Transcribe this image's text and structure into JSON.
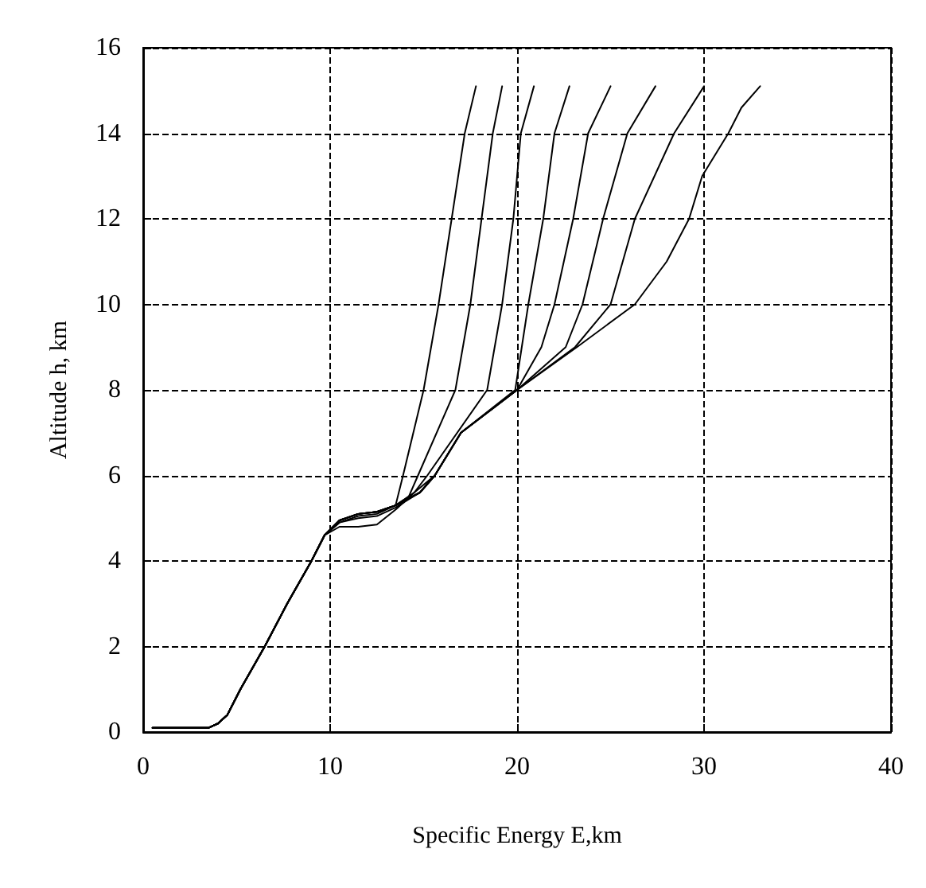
{
  "chart_data": {
    "type": "line",
    "xlabel": "Specific Energy E,km",
    "ylabel": "Altitude h, km",
    "xlim": [
      0,
      40
    ],
    "ylim": [
      0,
      16
    ],
    "xticks": [
      0,
      10,
      20,
      30,
      40
    ],
    "yticks": [
      0,
      2,
      4,
      6,
      8,
      10,
      12,
      14,
      16
    ],
    "grid": true,
    "marker": "none",
    "line_style": "solid",
    "series": [
      {
        "color": "#000000",
        "x": [
          0.5,
          3.5,
          4,
          4.5,
          5.2,
          6.5,
          7.7,
          9,
          9.7,
          10.5,
          11.5,
          12.5,
          13.5,
          13.9,
          15,
          15.8,
          16.5,
          17.2,
          17.8
        ],
        "values": [
          0.1,
          0.1,
          0.2,
          0.4,
          1,
          2,
          3,
          4,
          4.6,
          4.95,
          5.1,
          5.15,
          5.3,
          6,
          8,
          10,
          12,
          14,
          15.1
        ]
      },
      {
        "color": "#000000",
        "x": [
          0.5,
          3.5,
          4,
          4.5,
          5.2,
          6.5,
          7.7,
          9,
          9.7,
          10.5,
          11.5,
          12.5,
          13.5,
          14.2,
          14.7,
          16.7,
          17.5,
          18.1,
          18.7,
          19.2
        ],
        "values": [
          0.1,
          0.1,
          0.2,
          0.4,
          1,
          2,
          3,
          4,
          4.6,
          4.95,
          5.1,
          5.15,
          5.3,
          5.5,
          6,
          8,
          10,
          12,
          14,
          15.1
        ]
      },
      {
        "color": "#000000",
        "x": [
          0.5,
          3.5,
          4,
          4.5,
          5.2,
          6.5,
          7.7,
          9,
          9.7,
          10.5,
          11.5,
          12.5,
          13.5,
          14.5,
          15.2,
          18.4,
          19.2,
          19.8,
          20.2,
          20.9
        ],
        "values": [
          0.1,
          0.1,
          0.2,
          0.4,
          1,
          2,
          3,
          4,
          4.6,
          4.95,
          5.1,
          5.15,
          5.3,
          5.6,
          6,
          8,
          10,
          12,
          14,
          15.1
        ]
      },
      {
        "color": "#000000",
        "x": [
          0.5,
          3.5,
          4,
          4.5,
          5.2,
          6.5,
          7.7,
          9,
          9.7,
          10.5,
          11.5,
          12.5,
          13.5,
          14.8,
          15.6,
          17,
          19.9,
          20.6,
          21.4,
          22,
          22.8
        ],
        "values": [
          0.1,
          0.1,
          0.2,
          0.4,
          1,
          2,
          3,
          4,
          4.6,
          4.95,
          5.1,
          5.15,
          5.3,
          5.6,
          6,
          7,
          8,
          10,
          12,
          14,
          15.1
        ]
      },
      {
        "color": "#000000",
        "x": [
          0.5,
          3.5,
          4,
          4.5,
          5.2,
          6.5,
          7.7,
          9,
          9.7,
          10.5,
          11.5,
          12.5,
          13.5,
          14.8,
          15.6,
          17,
          20,
          21.3,
          22,
          23,
          23.8,
          25
        ],
        "values": [
          0.1,
          0.1,
          0.2,
          0.4,
          1,
          2,
          3,
          4,
          4.6,
          4.95,
          5.1,
          5.15,
          5.3,
          5.6,
          6,
          7,
          8,
          9,
          10,
          12,
          14,
          15.1
        ]
      },
      {
        "color": "#000000",
        "x": [
          0.5,
          3.5,
          4,
          4.5,
          5.2,
          6.5,
          7.7,
          9,
          9.7,
          10.5,
          11.5,
          12.5,
          13.5,
          14.8,
          15.6,
          17,
          20,
          22.6,
          23.5,
          24.6,
          25.9,
          27.4
        ],
        "values": [
          0.1,
          0.1,
          0.2,
          0.4,
          1,
          2,
          3,
          4,
          4.6,
          4.9,
          5.05,
          5.1,
          5.3,
          5.6,
          6,
          7,
          8,
          9,
          10,
          12,
          14,
          15.1
        ]
      },
      {
        "color": "#000000",
        "x": [
          0.5,
          3.5,
          4,
          4.5,
          5.2,
          6.5,
          7.7,
          9,
          9.7,
          10.5,
          11.5,
          12.5,
          13.5,
          14.8,
          15.6,
          17,
          20,
          23.1,
          25,
          26.3,
          28.4,
          30
        ],
        "values": [
          0.1,
          0.1,
          0.2,
          0.4,
          1,
          2,
          3,
          4,
          4.6,
          4.9,
          5,
          5.05,
          5.25,
          5.6,
          6,
          7,
          8,
          9,
          10,
          12,
          14,
          15.1
        ]
      },
      {
        "color": "#000000",
        "x": [
          0.5,
          3.5,
          4,
          4.5,
          5.2,
          6.5,
          7.7,
          9,
          9.7,
          10.5,
          11.5,
          12.5,
          13.5,
          14.5,
          15.6,
          17,
          20,
          23.2,
          26.3,
          28,
          29.2,
          29.9,
          31.3,
          32,
          33
        ],
        "values": [
          0.1,
          0.1,
          0.2,
          0.4,
          1,
          2,
          3,
          4,
          4.6,
          4.8,
          4.8,
          4.85,
          5.2,
          5.6,
          6,
          7,
          8,
          9,
          10,
          11,
          12,
          13,
          14,
          14.6,
          15.1
        ]
      }
    ]
  }
}
